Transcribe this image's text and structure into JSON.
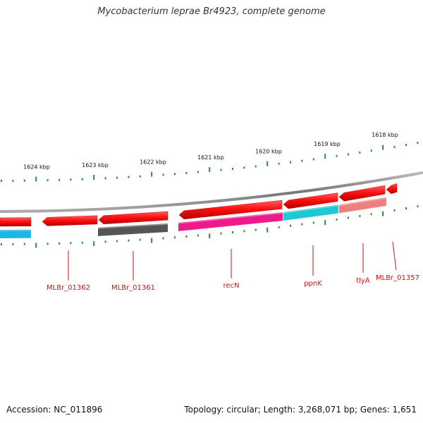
{
  "title": "Mycobacterium leprae Br4923, complete genome",
  "footer": {
    "accession": "Accession: NC_011896",
    "summary": "Topology: circular; Length: 3,268,071 bp; Genes: 1,651"
  },
  "ruler": {
    "labels": [
      "1624 kbp",
      "1623 kbp",
      "1622 kbp",
      "1621 kbp",
      "1620 kbp",
      "1619 kbp",
      "1618 kbp"
    ],
    "tick_color": "#2e8b2e"
  },
  "genes": [
    {
      "label": "MLBr_01362",
      "color": "#ff1a1a",
      "track_color": "#1bb6e6"
    },
    {
      "label": "MLBr_01361",
      "color": "#ff1a1a",
      "track_color": "#555555"
    },
    {
      "label": "recN",
      "color": "#ff1a1a",
      "track_color": "#ee1a8c"
    },
    {
      "label": "ppnK",
      "color": "#ff1a1a",
      "track_color": "#1ec8d4"
    },
    {
      "label": "tlyA",
      "color": "#ff1a1a",
      "track_color": "#f08080"
    },
    {
      "label": "MLBr_01357",
      "color": "#ff1a1a",
      "track_color": ""
    }
  ],
  "label_color": "#cc1111",
  "backbone_color": "#808080"
}
